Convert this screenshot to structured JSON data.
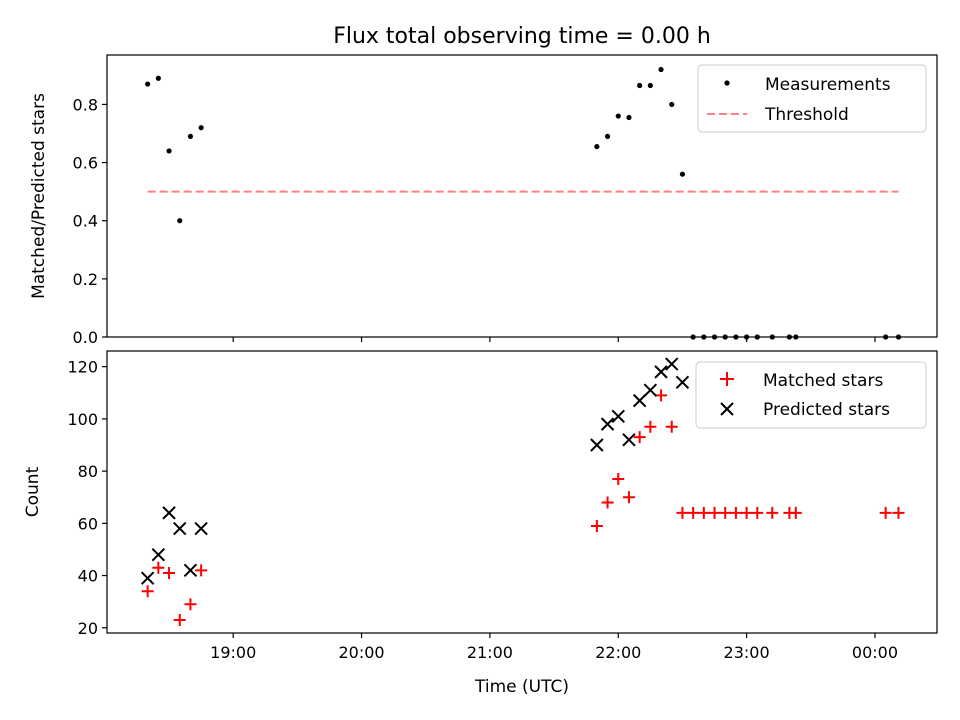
{
  "figure": {
    "title": "Flux total observing time = 0.00 h",
    "xlabel": "Time (UTC)",
    "xtick_labels": [
      "19:00",
      "20:00",
      "21:00",
      "22:00",
      "23:00",
      "00:00"
    ]
  },
  "chart_data": [
    {
      "type": "scatter",
      "panel": "top",
      "ylabel": "Matched/Predicted stars",
      "ylim": [
        0,
        0.97
      ],
      "yticks": [
        0.0,
        0.2,
        0.4,
        0.6,
        0.8
      ],
      "ytick_labels": [
        "0.0",
        "0.2",
        "0.4",
        "0.6",
        "0.8"
      ],
      "legend_position": "top-right",
      "xlim": [
        "18:01",
        "00:29"
      ],
      "series": [
        {
          "name": "Measurements",
          "marker": "dot",
          "color": "#000000",
          "x": [
            "18:20",
            "18:25",
            "18:30",
            "18:35",
            "18:40",
            "18:45",
            "21:50",
            "21:55",
            "22:00",
            "22:05",
            "22:10",
            "22:15",
            "22:20",
            "22:25",
            "22:30",
            "22:35",
            "22:40",
            "22:45",
            "22:50",
            "22:55",
            "23:00",
            "23:05",
            "23:12",
            "23:20",
            "23:23",
            "00:05",
            "00:11"
          ],
          "y": [
            0.87,
            0.89,
            0.64,
            0.4,
            0.69,
            0.72,
            0.655,
            0.69,
            0.76,
            0.755,
            0.865,
            0.865,
            0.92,
            0.8,
            0.56,
            0,
            0,
            0,
            0,
            0,
            0,
            0,
            0,
            0,
            0,
            0,
            0
          ]
        },
        {
          "name": "Threshold",
          "type": "line",
          "style": "dashed",
          "color": "#ff8080",
          "x": [
            "18:20",
            "00:11"
          ],
          "y": [
            0.5,
            0.5
          ]
        }
      ]
    },
    {
      "type": "scatter",
      "panel": "bottom",
      "ylabel": "Count",
      "ylim": [
        18,
        126
      ],
      "yticks": [
        20,
        40,
        60,
        80,
        100,
        120
      ],
      "ytick_labels": [
        "20",
        "40",
        "60",
        "80",
        "100",
        "120"
      ],
      "legend_position": "top-right",
      "xlim": [
        "18:01",
        "00:29"
      ],
      "series": [
        {
          "name": "Matched stars",
          "marker": "plus",
          "color": "#ff0000",
          "x": [
            "18:20",
            "18:25",
            "18:30",
            "18:35",
            "18:40",
            "18:45",
            "21:50",
            "21:55",
            "22:00",
            "22:05",
            "22:10",
            "22:15",
            "22:20",
            "22:25",
            "22:30",
            "22:35",
            "22:40",
            "22:45",
            "22:50",
            "22:55",
            "23:00",
            "23:05",
            "23:12",
            "23:20",
            "23:23",
            "00:05",
            "00:11"
          ],
          "y": [
            34,
            43,
            41,
            23,
            29,
            42,
            59,
            68,
            77,
            70,
            93,
            97,
            109,
            97,
            64,
            64,
            64,
            64,
            64,
            64,
            64,
            64,
            64,
            64,
            64,
            64,
            64
          ]
        },
        {
          "name": "Predicted stars",
          "marker": "x",
          "color": "#000000",
          "x": [
            "18:20",
            "18:25",
            "18:30",
            "18:35",
            "18:40",
            "18:45",
            "21:50",
            "21:55",
            "22:00",
            "22:05",
            "22:10",
            "22:15",
            "22:20",
            "22:25",
            "22:30"
          ],
          "y": [
            39,
            48,
            64,
            58,
            42,
            58,
            90,
            98,
            101,
            92,
            107,
            111,
            118,
            121,
            114
          ]
        }
      ]
    }
  ]
}
